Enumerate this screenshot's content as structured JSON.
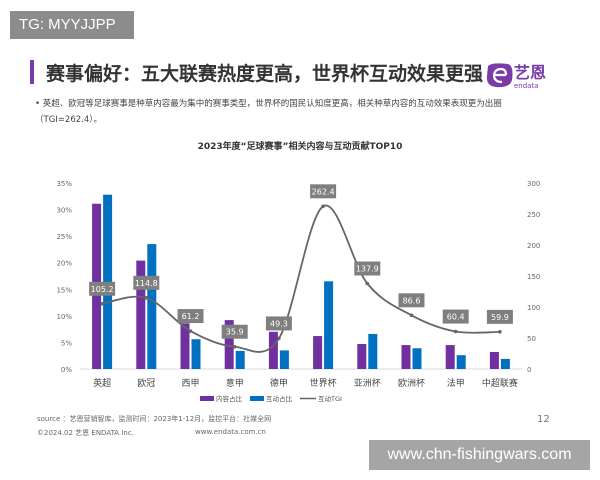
{
  "watermark_top": "TG: MYYJJPP",
  "title": "赛事偏好：五大联赛热度更高，世界杯互动效果更强",
  "logo": {
    "cn": "艺恩",
    "en": "endata"
  },
  "bullet": "英超、欧冠等足球赛事是种草内容最为集中的赛事类型，世界杯的国民认知度更高，相关种草内容的互动效果表现更为出圈（TGI=262.4）。",
  "chart_data": {
    "type": "bar+line",
    "title": "2023年度“足球赛事”相关内容与互动贡献TOP10",
    "categories": [
      "英超",
      "欧冠",
      "西甲",
      "意甲",
      "德甲",
      "世界杯",
      "亚洲杯",
      "欧洲杯",
      "法甲",
      "中超联赛"
    ],
    "series": [
      {
        "name": "内容占比",
        "type": "bar",
        "axis": "left",
        "color": "#7030a0",
        "values": [
          31.1,
          20.4,
          8.6,
          9.2,
          7.0,
          6.2,
          4.7,
          4.5,
          4.5,
          3.2
        ]
      },
      {
        "name": "互动占比",
        "type": "bar",
        "axis": "left",
        "color": "#0070c0",
        "values": [
          32.8,
          23.5,
          5.6,
          3.4,
          3.5,
          16.5,
          6.6,
          3.9,
          2.6,
          1.9
        ]
      },
      {
        "name": "互动TGI",
        "type": "line",
        "axis": "right",
        "color": "#666666",
        "values": [
          105.2,
          114.8,
          61.2,
          35.9,
          49.3,
          262.4,
          137.9,
          86.6,
          60.4,
          59.9
        ],
        "labels": [
          "105.2",
          "114.8",
          "61.2",
          "35.9",
          "49.3",
          "262.4",
          "137.9",
          "86.6",
          "60.4",
          "59.9"
        ]
      }
    ],
    "left_axis": {
      "ylim": [
        0,
        35
      ],
      "ticks": [
        "0%",
        "5%",
        "10%",
        "15%",
        "20%",
        "25%",
        "30%",
        "35%"
      ]
    },
    "right_axis": {
      "ylim": [
        0,
        300
      ],
      "ticks": [
        "0",
        "50",
        "100",
        "150",
        "200",
        "250",
        "300"
      ]
    },
    "legend": "bottom",
    "grid": false
  },
  "source": "source ：艺恩营销智库，监测时间：2023年1-12月，监控平台：社媒全网",
  "copyright": "©2024.02  艺恩 ENDATA Inc.",
  "site": "www.endata.com.cn",
  "page_number": "12",
  "watermark_bottom": "www.chn-fishingwars.com"
}
